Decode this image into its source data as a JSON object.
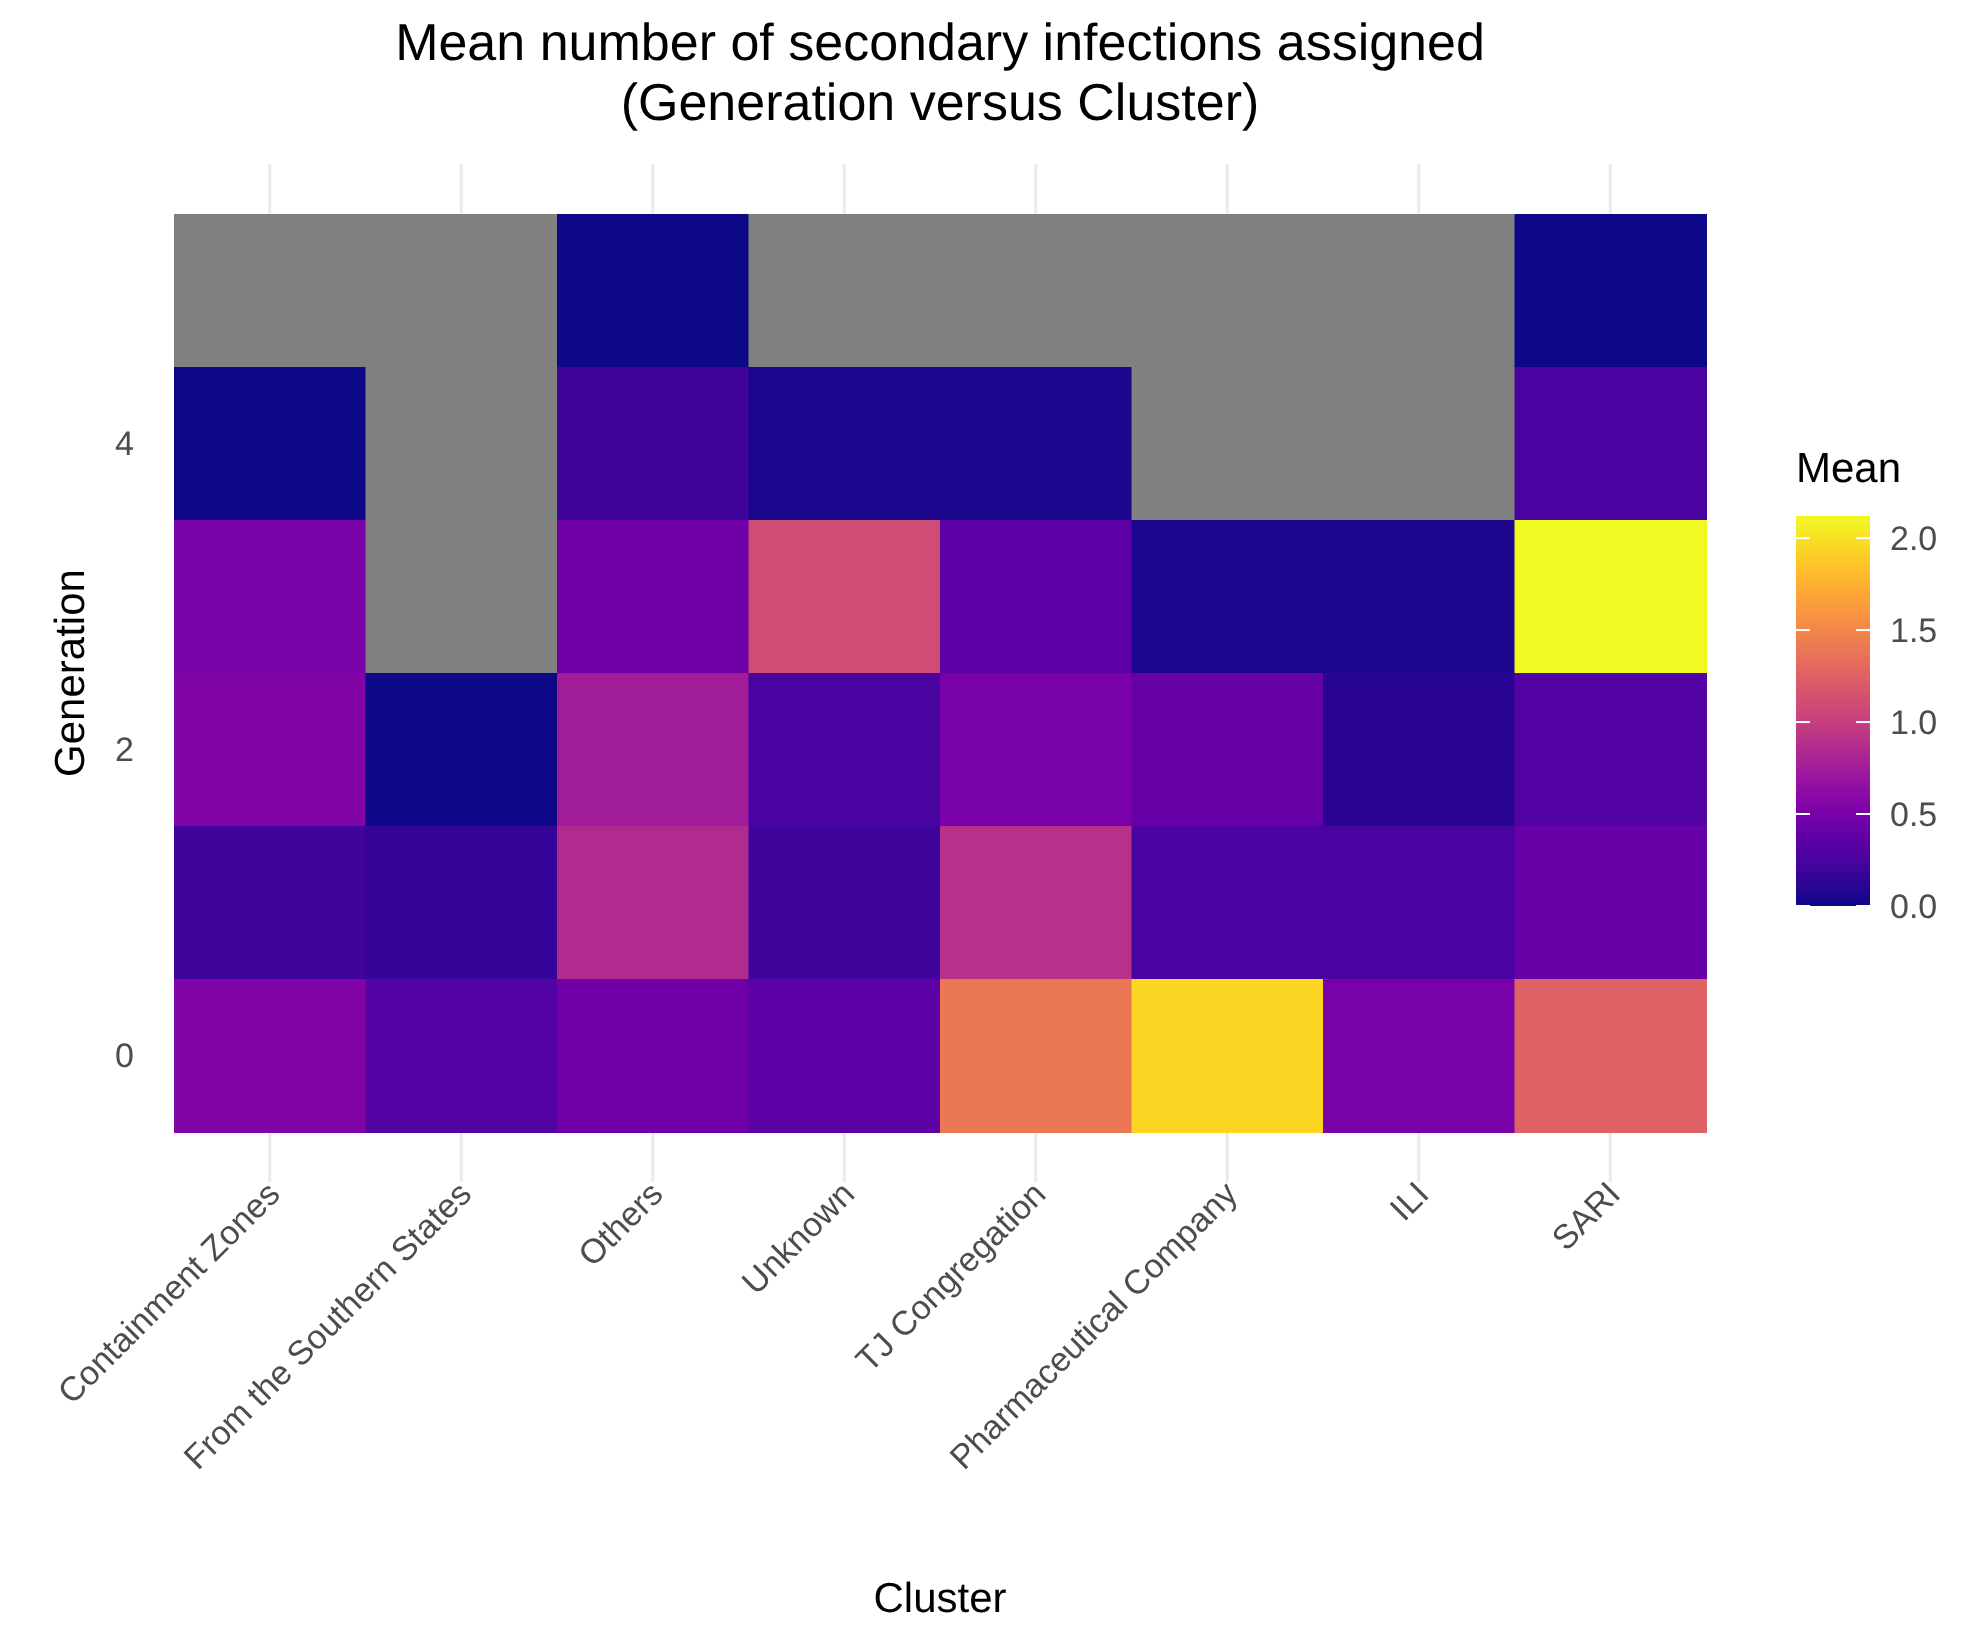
{
  "chart_data": {
    "type": "heatmap",
    "title": "Mean number of secondary infections assigned\n(Generation versus Cluster)",
    "xlabel": "Cluster",
    "ylabel": "Generation",
    "legend_title": "Mean",
    "categories": [
      "Containment Zones",
      "From the Southern States",
      "Others",
      "Unknown",
      "TJ Congregation",
      "Pharmaceutical Company",
      "ILI",
      "SARI"
    ],
    "y_categories": [
      null,
      "4",
      null,
      "2",
      null,
      "0"
    ],
    "grid": true,
    "cells": [
      [
        null,
        null,
        0.0,
        null,
        null,
        null,
        null,
        0.0
      ],
      [
        0.0,
        null,
        0.2,
        0.05,
        0.05,
        null,
        null,
        0.25
      ],
      [
        0.5,
        null,
        0.45,
        1.1,
        0.35,
        0.05,
        0.05,
        2.12
      ],
      [
        0.55,
        0.0,
        0.75,
        0.25,
        0.5,
        0.4,
        0.1,
        0.3
      ],
      [
        0.2,
        0.15,
        0.85,
        0.2,
        0.9,
        0.25,
        0.25,
        0.4
      ],
      [
        0.55,
        0.3,
        0.45,
        0.35,
        1.4,
        1.95,
        0.5,
        1.25
      ]
    ],
    "clim": [
      0,
      2.12
    ],
    "cticks": [
      {
        "value": 0,
        "label": "0.0"
      },
      {
        "value": 0.5,
        "label": "0.5"
      },
      {
        "value": 1,
        "label": "1.0"
      },
      {
        "value": 1.5,
        "label": "1.5"
      },
      {
        "value": 2,
        "label": "2.0"
      }
    ]
  }
}
